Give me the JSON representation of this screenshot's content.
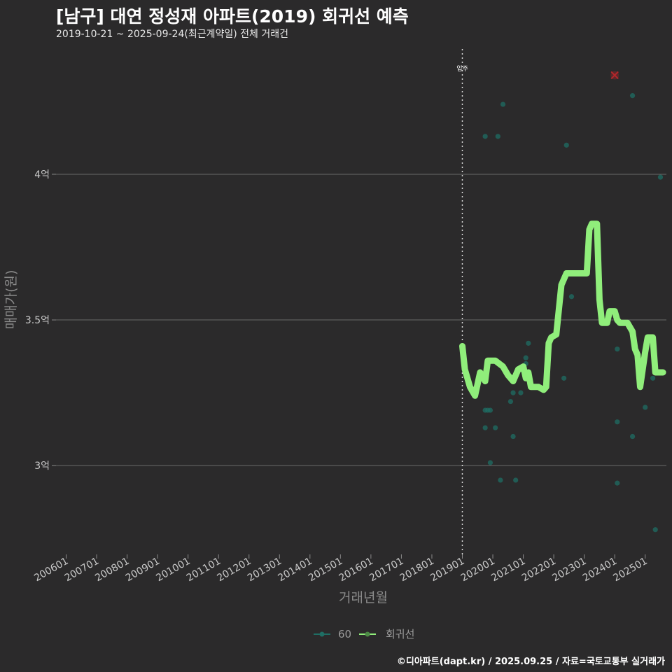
{
  "header": {
    "title": "[남구] 대연 정성재 아파트(2019) 회귀선 예측",
    "subtitle": "2019-10-21 ~ 2025-09-24(최근계약일) 전체 거래건",
    "credit": "©디아파트(dapt.kr) / 2025.09.25 / 자료=국토교통부 실거래가"
  },
  "chart_data": {
    "type": "scatter",
    "xlabel": "거래년월",
    "ylabel": "매매가(원)",
    "x_tick_labels": [
      "200601",
      "200701",
      "200801",
      "200901",
      "201001",
      "201101",
      "201201",
      "201301",
      "201401",
      "201501",
      "201601",
      "201701",
      "201801",
      "201901",
      "202001",
      "202101",
      "202201",
      "202301",
      "202401",
      "202501"
    ],
    "y_ticks": [
      {
        "value": 300000000,
        "label": "3억"
      },
      {
        "value": 350000000,
        "label": "3.5억"
      },
      {
        "value": 400000000,
        "label": "4억"
      }
    ],
    "xlim": [
      "2005-09",
      "2025-11"
    ],
    "ylim": [
      270000000,
      443000000
    ],
    "grid": true,
    "colors": {
      "points": "#1f6e64",
      "regression": "#90ee7b",
      "forecast_marker": "#b3262a",
      "annotation": "#ffffff"
    },
    "move_in": {
      "x": "2019-01",
      "label": "입주"
    },
    "forecast_marker": {
      "x": "2024-01",
      "y": 434000000
    },
    "legend": {
      "position": "bottom",
      "entries": [
        {
          "name": "60"
        },
        {
          "name": "회귀선"
        }
      ]
    },
    "series": [
      {
        "name": "60",
        "kind": "points",
        "points": [
          [
            "2019-10",
            413000000
          ],
          [
            "2019-10",
            319000000
          ],
          [
            "2019-10",
            313000000
          ],
          [
            "2019-11",
            319000000
          ],
          [
            "2019-12",
            319000000
          ],
          [
            "2019-12",
            301000000
          ],
          [
            "2020-02",
            313000000
          ],
          [
            "2020-03",
            413000000
          ],
          [
            "2020-04",
            295000000
          ],
          [
            "2020-05",
            424000000
          ],
          [
            "2020-08",
            322000000
          ],
          [
            "2020-09",
            325000000
          ],
          [
            "2020-09",
            310000000
          ],
          [
            "2020-10",
            295000000
          ],
          [
            "2020-12",
            325000000
          ],
          [
            "2021-02",
            335000000
          ],
          [
            "2021-02",
            337000000
          ],
          [
            "2021-03",
            342000000
          ],
          [
            "2022-05",
            330000000
          ],
          [
            "2022-06",
            410000000
          ],
          [
            "2022-08",
            358000000
          ],
          [
            "2024-02",
            340000000
          ],
          [
            "2024-02",
            315000000
          ],
          [
            "2024-02",
            294000000
          ],
          [
            "2024-08",
            427000000
          ],
          [
            "2024-08",
            310000000
          ],
          [
            "2025-01",
            320000000
          ],
          [
            "2025-04",
            330000000
          ],
          [
            "2025-05",
            278000000
          ],
          [
            "2025-07",
            399000000
          ]
        ]
      },
      {
        "name": "회귀선",
        "kind": "line",
        "points": [
          [
            "2019-01",
            341000000
          ],
          [
            "2019-02",
            333000000
          ],
          [
            "2019-04",
            327000000
          ],
          [
            "2019-06",
            324000000
          ],
          [
            "2019-08",
            332000000
          ],
          [
            "2019-10",
            329000000
          ],
          [
            "2019-11",
            336000000
          ],
          [
            "2020-02",
            336000000
          ],
          [
            "2020-05",
            334000000
          ],
          [
            "2020-07",
            331000000
          ],
          [
            "2020-09",
            329000000
          ],
          [
            "2020-11",
            333000000
          ],
          [
            "2021-01",
            334000000
          ],
          [
            "2021-02",
            330000000
          ],
          [
            "2021-03",
            332000000
          ],
          [
            "2021-04",
            327000000
          ],
          [
            "2021-07",
            327000000
          ],
          [
            "2021-09",
            326000000
          ],
          [
            "2021-10",
            327000000
          ],
          [
            "2021-11",
            342000000
          ],
          [
            "2021-12",
            344000000
          ],
          [
            "2022-02",
            345000000
          ],
          [
            "2022-04",
            362000000
          ],
          [
            "2022-06",
            366000000
          ],
          [
            "2022-09",
            366000000
          ],
          [
            "2023-02",
            366000000
          ],
          [
            "2023-03",
            381000000
          ],
          [
            "2023-04",
            383000000
          ],
          [
            "2023-06",
            383000000
          ],
          [
            "2023-07",
            357000000
          ],
          [
            "2023-08",
            349000000
          ],
          [
            "2023-10",
            349000000
          ],
          [
            "2023-11",
            353000000
          ],
          [
            "2024-01",
            353000000
          ],
          [
            "2024-02",
            350000000
          ],
          [
            "2024-03",
            349000000
          ],
          [
            "2024-06",
            349000000
          ],
          [
            "2024-08",
            346000000
          ],
          [
            "2024-09",
            340000000
          ],
          [
            "2024-10",
            338000000
          ],
          [
            "2024-11",
            327000000
          ],
          [
            "2024-12",
            333000000
          ],
          [
            "2025-01",
            339000000
          ],
          [
            "2025-02",
            344000000
          ],
          [
            "2025-04",
            344000000
          ],
          [
            "2025-05",
            332000000
          ],
          [
            "2025-08",
            332000000
          ]
        ]
      }
    ]
  }
}
